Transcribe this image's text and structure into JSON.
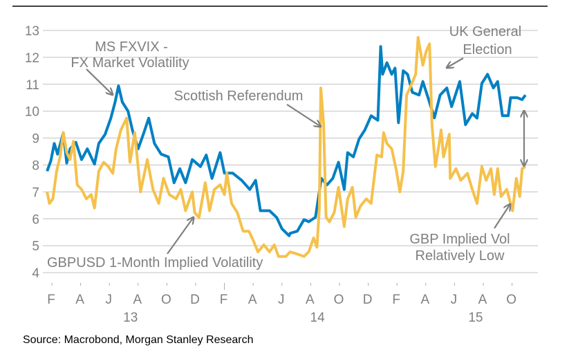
{
  "chart_data": {
    "type": "line",
    "title": "",
    "xlabel": "",
    "ylabel": "",
    "ylim": [
      4,
      13
    ],
    "yticks": [
      4,
      5,
      6,
      7,
      8,
      9,
      10,
      11,
      12,
      13
    ],
    "xlim": [
      "2013-01-15",
      "2015-11-10"
    ],
    "grid": "horizontal",
    "xticks": [
      {
        "date": "2013-02-01",
        "label": "F"
      },
      {
        "date": "2013-04-01",
        "label": "A"
      },
      {
        "date": "2013-06-01",
        "label": "J"
      },
      {
        "date": "2013-08-01",
        "label": "A"
      },
      {
        "date": "2013-10-01",
        "label": "O"
      },
      {
        "date": "2013-12-01",
        "label": "D"
      },
      {
        "date": "2014-02-01",
        "label": "F"
      },
      {
        "date": "2014-04-01",
        "label": "A"
      },
      {
        "date": "2014-06-01",
        "label": "J"
      },
      {
        "date": "2014-08-01",
        "label": "A"
      },
      {
        "date": "2014-10-01",
        "label": "O"
      },
      {
        "date": "2014-12-01",
        "label": "D"
      },
      {
        "date": "2015-02-01",
        "label": "F"
      },
      {
        "date": "2015-04-01",
        "label": "A"
      },
      {
        "date": "2015-06-01",
        "label": "J"
      },
      {
        "date": "2015-08-01",
        "label": "A"
      },
      {
        "date": "2015-10-01",
        "label": "O"
      }
    ],
    "year_labels": [
      {
        "date": "2013-07-15",
        "label": "13"
      },
      {
        "date": "2014-08-15",
        "label": "14"
      },
      {
        "date": "2015-07-15",
        "label": "15"
      }
    ],
    "colors": {
      "ms_fxvix": "#0080c3",
      "gbpusd": "#f5c14c",
      "grid": "#c0c0c0",
      "annotation": "#7f7f7f"
    },
    "series": [
      {
        "key": "ms_fxvix",
        "name": "MS FXVIX - FX Market Volatility",
        "points": [
          [
            "2013-01-21",
            7.77
          ],
          [
            "2013-01-29",
            8.16
          ],
          [
            "2013-02-06",
            8.8
          ],
          [
            "2013-02-13",
            8.4
          ],
          [
            "2013-02-25",
            9.2
          ],
          [
            "2013-03-02",
            8.07
          ],
          [
            "2013-03-09",
            8.6
          ],
          [
            "2013-03-21",
            8.84
          ],
          [
            "2013-04-03",
            8.2
          ],
          [
            "2013-04-15",
            8.6
          ],
          [
            "2013-04-30",
            8.03
          ],
          [
            "2013-05-09",
            8.8
          ],
          [
            "2013-05-22",
            9.14
          ],
          [
            "2013-06-04",
            9.74
          ],
          [
            "2013-06-13",
            10.34
          ],
          [
            "2013-06-20",
            10.94
          ],
          [
            "2013-06-28",
            10.34
          ],
          [
            "2013-07-10",
            10.0
          ],
          [
            "2013-07-19",
            9.3
          ],
          [
            "2013-08-01",
            8.6
          ],
          [
            "2013-08-13",
            9.2
          ],
          [
            "2013-08-23",
            9.74
          ],
          [
            "2013-09-05",
            8.8
          ],
          [
            "2013-09-19",
            8.4
          ],
          [
            "2013-10-04",
            8.3
          ],
          [
            "2013-10-16",
            7.34
          ],
          [
            "2013-10-28",
            7.86
          ],
          [
            "2013-11-10",
            7.34
          ],
          [
            "2013-11-24",
            8.2
          ],
          [
            "2013-12-11",
            7.94
          ],
          [
            "2013-12-23",
            8.37
          ],
          [
            "2014-01-05",
            7.5
          ],
          [
            "2014-01-22",
            8.46
          ],
          [
            "2014-02-01",
            7.7
          ],
          [
            "2014-02-18",
            7.7
          ],
          [
            "2014-03-07",
            7.43
          ],
          [
            "2014-03-24",
            7.09
          ],
          [
            "2014-04-06",
            7.43
          ],
          [
            "2014-04-16",
            6.3
          ],
          [
            "2014-05-05",
            6.3
          ],
          [
            "2014-05-20",
            6.05
          ],
          [
            "2014-06-01",
            5.63
          ],
          [
            "2014-06-16",
            5.37
          ],
          [
            "2014-06-18",
            5.46
          ],
          [
            "2014-07-03",
            5.54
          ],
          [
            "2014-07-17",
            5.97
          ],
          [
            "2014-07-27",
            5.89
          ],
          [
            "2014-08-11",
            6.06
          ],
          [
            "2014-08-23",
            7.5
          ],
          [
            "2014-09-05",
            7.26
          ],
          [
            "2014-09-17",
            7.5
          ],
          [
            "2014-09-29",
            8.1
          ],
          [
            "2014-10-11",
            7.09
          ],
          [
            "2014-10-18",
            8.46
          ],
          [
            "2014-10-30",
            8.3
          ],
          [
            "2014-11-12",
            8.97
          ],
          [
            "2014-11-24",
            9.3
          ],
          [
            "2014-12-07",
            9.83
          ],
          [
            "2014-12-21",
            9.66
          ],
          [
            "2014-12-27",
            12.4
          ],
          [
            "2015-01-01",
            11.37
          ],
          [
            "2015-01-10",
            11.8
          ],
          [
            "2015-01-20",
            11.37
          ],
          [
            "2015-01-27",
            11.6
          ],
          [
            "2015-02-04",
            9.57
          ],
          [
            "2015-02-14",
            11.5
          ],
          [
            "2015-02-23",
            11.37
          ],
          [
            "2015-03-03",
            10.7
          ],
          [
            "2015-03-17",
            10.6
          ],
          [
            "2015-03-25",
            11.1
          ],
          [
            "2015-04-07",
            10.43
          ],
          [
            "2015-04-19",
            9.75
          ],
          [
            "2015-05-01",
            10.6
          ],
          [
            "2015-05-15",
            10.86
          ],
          [
            "2015-05-25",
            10.17
          ],
          [
            "2015-06-12",
            11.1
          ],
          [
            "2015-06-24",
            9.5
          ],
          [
            "2015-07-08",
            9.91
          ],
          [
            "2015-07-18",
            9.74
          ],
          [
            "2015-07-28",
            11.03
          ],
          [
            "2015-08-10",
            11.37
          ],
          [
            "2015-08-22",
            10.86
          ],
          [
            "2015-09-01",
            11.1
          ],
          [
            "2015-09-11",
            9.83
          ],
          [
            "2015-09-23",
            9.83
          ],
          [
            "2015-09-28",
            10.5
          ],
          [
            "2015-10-12",
            10.5
          ],
          [
            "2015-10-22",
            10.43
          ],
          [
            "2015-10-29",
            10.6
          ]
        ]
      },
      {
        "key": "gbpusd",
        "name": "GBPUSD 1-Month Implied Volatility",
        "points": [
          [
            "2013-01-21",
            7.0
          ],
          [
            "2013-01-26",
            6.57
          ],
          [
            "2013-02-03",
            6.74
          ],
          [
            "2013-02-11",
            7.77
          ],
          [
            "2013-02-18",
            8.3
          ],
          [
            "2013-02-25",
            9.2
          ],
          [
            "2013-03-02",
            8.46
          ],
          [
            "2013-03-09",
            8.2
          ],
          [
            "2013-03-16",
            8.88
          ],
          [
            "2013-03-24",
            7.26
          ],
          [
            "2013-04-03",
            7.09
          ],
          [
            "2013-04-13",
            6.74
          ],
          [
            "2013-04-23",
            6.9
          ],
          [
            "2013-04-30",
            6.4
          ],
          [
            "2013-05-09",
            7.77
          ],
          [
            "2013-05-19",
            8.1
          ],
          [
            "2013-05-29",
            7.94
          ],
          [
            "2013-06-08",
            7.69
          ],
          [
            "2013-06-15",
            8.6
          ],
          [
            "2013-06-25",
            9.3
          ],
          [
            "2013-07-07",
            9.74
          ],
          [
            "2013-07-14",
            8.1
          ],
          [
            "2013-07-24",
            9.2
          ],
          [
            "2013-08-06",
            7.0
          ],
          [
            "2013-08-20",
            8.2
          ],
          [
            "2013-09-02",
            7.09
          ],
          [
            "2013-09-14",
            6.57
          ],
          [
            "2013-09-24",
            7.5
          ],
          [
            "2013-10-06",
            6.9
          ],
          [
            "2013-10-20",
            6.74
          ],
          [
            "2013-10-30",
            7.09
          ],
          [
            "2013-11-10",
            6.3
          ],
          [
            "2013-11-24",
            7.0
          ],
          [
            "2013-11-29",
            6.23
          ],
          [
            "2013-12-08",
            6.05
          ],
          [
            "2013-12-21",
            7.34
          ],
          [
            "2013-12-30",
            6.3
          ],
          [
            "2014-01-10",
            7.09
          ],
          [
            "2014-01-22",
            7.26
          ],
          [
            "2014-02-01",
            6.9
          ],
          [
            "2014-02-06",
            7.7
          ],
          [
            "2014-02-16",
            6.57
          ],
          [
            "2014-02-28",
            6.23
          ],
          [
            "2014-03-10",
            5.54
          ],
          [
            "2014-03-22",
            5.54
          ],
          [
            "2014-04-01",
            5.2
          ],
          [
            "2014-04-11",
            4.77
          ],
          [
            "2014-04-23",
            5.03
          ],
          [
            "2014-05-05",
            4.77
          ],
          [
            "2014-05-15",
            5.03
          ],
          [
            "2014-05-24",
            4.6
          ],
          [
            "2014-06-09",
            4.6
          ],
          [
            "2014-06-18",
            4.77
          ],
          [
            "2014-07-03",
            4.69
          ],
          [
            "2014-07-17",
            4.6
          ],
          [
            "2014-07-27",
            4.77
          ],
          [
            "2014-08-07",
            5.29
          ],
          [
            "2014-08-14",
            4.94
          ],
          [
            "2014-08-19",
            6.4
          ],
          [
            "2014-08-22",
            10.86
          ],
          [
            "2014-08-28",
            9.5
          ],
          [
            "2014-09-03",
            6.06
          ],
          [
            "2014-09-10",
            5.89
          ],
          [
            "2014-09-20",
            6.23
          ],
          [
            "2014-09-29",
            7.17
          ],
          [
            "2014-10-11",
            5.71
          ],
          [
            "2014-10-18",
            6.74
          ],
          [
            "2014-10-28",
            7.17
          ],
          [
            "2014-11-05",
            6.06
          ],
          [
            "2014-11-15",
            6.48
          ],
          [
            "2014-11-27",
            6.74
          ],
          [
            "2014-12-07",
            6.57
          ],
          [
            "2014-12-19",
            8.37
          ],
          [
            "2014-12-29",
            8.3
          ],
          [
            "2015-01-03",
            9.2
          ],
          [
            "2015-01-10",
            8.8
          ],
          [
            "2015-01-20",
            8.6
          ],
          [
            "2015-01-30",
            7.77
          ],
          [
            "2015-02-07",
            7.0
          ],
          [
            "2015-02-14",
            7.77
          ],
          [
            "2015-02-21",
            10.6
          ],
          [
            "2015-02-28",
            10.86
          ],
          [
            "2015-03-10",
            11.37
          ],
          [
            "2015-03-15",
            12.74
          ],
          [
            "2015-03-25",
            11.71
          ],
          [
            "2015-04-02",
            12.23
          ],
          [
            "2015-04-09",
            12.5
          ],
          [
            "2015-04-14",
            9.5
          ],
          [
            "2015-04-21",
            7.94
          ],
          [
            "2015-04-29",
            8.8
          ],
          [
            "2015-05-03",
            9.3
          ],
          [
            "2015-05-08",
            8.3
          ],
          [
            "2015-05-20",
            9.14
          ],
          [
            "2015-05-22",
            7.5
          ],
          [
            "2015-06-04",
            7.86
          ],
          [
            "2015-06-14",
            7.43
          ],
          [
            "2015-06-28",
            7.69
          ],
          [
            "2015-07-08",
            7.09
          ],
          [
            "2015-07-18",
            6.57
          ],
          [
            "2015-07-28",
            7.94
          ],
          [
            "2015-08-07",
            7.43
          ],
          [
            "2015-08-17",
            7.86
          ],
          [
            "2015-08-24",
            6.9
          ],
          [
            "2015-09-01",
            7.86
          ],
          [
            "2015-09-08",
            6.83
          ],
          [
            "2015-09-20",
            7.09
          ],
          [
            "2015-09-28",
            6.57
          ],
          [
            "2015-10-02",
            6.3
          ],
          [
            "2015-10-10",
            7.5
          ],
          [
            "2015-10-17",
            6.83
          ],
          [
            "2015-10-22",
            7.86
          ],
          [
            "2015-10-29",
            7.94
          ]
        ]
      }
    ],
    "annotations": {
      "fxvix_line1": "MS FXVIX -",
      "fxvix_line2": "FX Market Volatility",
      "scottish": "Scottish Referendum",
      "uk_line1": "UK General",
      "uk_line2": "Election",
      "gbpusd": "GBPUSD 1-Month Implied Volatility",
      "gbp_low_line1": "GBP Implied Vol",
      "gbp_low_line2": "Relatively Low"
    }
  },
  "source": "Source: Macrobond, Morgan Stanley Research"
}
